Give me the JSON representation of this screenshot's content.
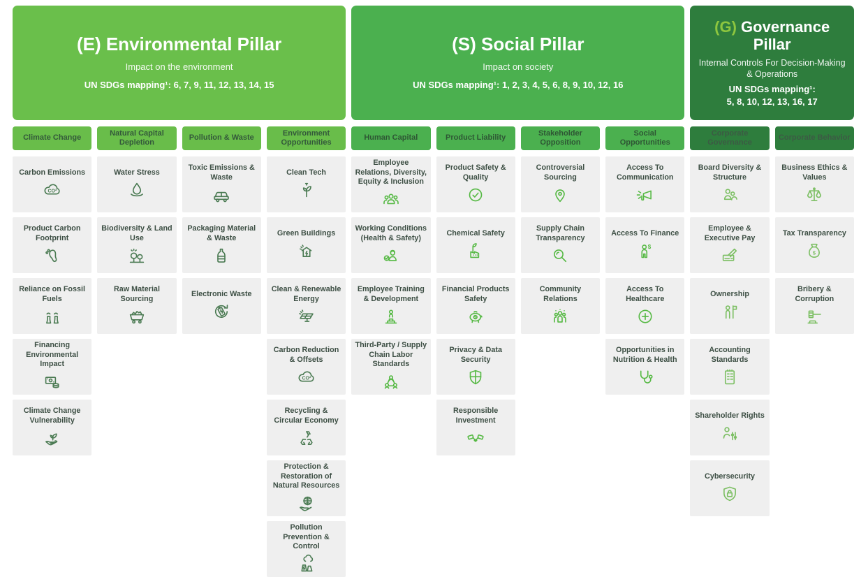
{
  "colors": {
    "environmental_green": "#6abf4b",
    "social_green": "#4bb04f",
    "governance_green": "#2e7d3d",
    "governance_code_accent": "#8dc63f",
    "card_background": "#efefef",
    "card_text": "#3d4f44",
    "env_icon": "#4a7a52",
    "soc_icon": "#56b944",
    "gov_icon": "#7cbf63"
  },
  "pillars": [
    {
      "code": "(E)",
      "title": "Environmental Pillar",
      "subtitle": "Impact on the environment",
      "sdg_label": "UN SDGs mapping¹:",
      "sdg_numbers": "6, 7, 9, 11, 12, 13, 14, 15"
    },
    {
      "code": "(S)",
      "title": "Social Pillar",
      "subtitle": "Impact on society",
      "sdg_label": "UN SDGs mapping¹:",
      "sdg_numbers": "1, 2, 3, 4, 5, 6, 8, 9, 10, 12, 16"
    },
    {
      "code": "(G)",
      "title": "Governance Pillar",
      "subtitle": "Internal Controls For Decision-Making & Operations",
      "sdg_label": "UN SDGs mapping¹:",
      "sdg_numbers": "5, 8, 10, 12, 13, 16, 17"
    }
  ],
  "columns": [
    {
      "pillar": "env",
      "header": "Climate Change",
      "cards": [
        {
          "label": "Carbon Emissions",
          "icon": "co2-cloud-icon"
        },
        {
          "label": "Product Carbon Footprint",
          "icon": "footprint-icon"
        },
        {
          "label": "Reliance on Fossil Fuels",
          "icon": "cooling-towers-icon"
        },
        {
          "label": "Financing Environmental Impact",
          "icon": "banknote-coins-icon"
        },
        {
          "label": "Climate Change Vulnerability",
          "icon": "hand-seedling-icon"
        }
      ]
    },
    {
      "pillar": "env",
      "header": "Natural Capital Depletion",
      "cards": [
        {
          "label": "Water Stress",
          "icon": "water-drop-icon"
        },
        {
          "label": "Biodiversity & Land Use",
          "icon": "trees-icon"
        },
        {
          "label": "Raw Material Sourcing",
          "icon": "mine-cart-icon"
        }
      ]
    },
    {
      "pillar": "env",
      "header": "Pollution & Waste",
      "cards": [
        {
          "label": "Toxic Emissions & Waste",
          "icon": "car-emissions-icon"
        },
        {
          "label": "Packaging Material & Waste",
          "icon": "bottle-icon"
        },
        {
          "label": "Electronic Waste",
          "icon": "battery-recycle-icon"
        }
      ]
    },
    {
      "pillar": "env",
      "header": "Environment Opportunities",
      "cards": [
        {
          "label": "Clean Tech",
          "icon": "plug-plant-icon"
        },
        {
          "label": "Green Buildings",
          "icon": "green-building-icon"
        },
        {
          "label": "Clean & Renewable Energy",
          "icon": "solar-panel-icon"
        },
        {
          "label": "Carbon Reduction & Offsets",
          "icon": "co2-cloud-icon"
        },
        {
          "label": "Recycling & Circular Economy",
          "icon": "recycle-icon"
        },
        {
          "label": "Protection & Restoration of Natural Resources",
          "icon": "hand-globe-icon"
        },
        {
          "label": "Pollution Prevention & Control",
          "icon": "factory-cloud-icon"
        }
      ]
    },
    {
      "pillar": "soc",
      "header": "Human Capital",
      "cards": [
        {
          "label": "Employee Relations, Diversity, Equity & Inclusion",
          "icon": "people-group-icon"
        },
        {
          "label": "Working Conditions (Health & Safety)",
          "icon": "worker-check-icon"
        },
        {
          "label": "Employee Training & Development",
          "icon": "training-icon"
        },
        {
          "label": "Third-Party / Supply Chain Labor Standards",
          "icon": "people-network-icon"
        }
      ]
    },
    {
      "pillar": "soc",
      "header": "Product Liability",
      "cards": [
        {
          "label": "Product Safety & Quality",
          "icon": "check-circle-icon"
        },
        {
          "label": "Chemical Safety",
          "icon": "chemical-plant-icon"
        },
        {
          "label": "Financial Products Safety",
          "icon": "piggy-bank-icon"
        },
        {
          "label": "Privacy & Data Security",
          "icon": "shield-icon"
        },
        {
          "label": "Responsible Investment",
          "icon": "handshake-icon"
        }
      ]
    },
    {
      "pillar": "soc",
      "header": "Stakeholder Opposition",
      "cards": [
        {
          "label": "Controversial Sourcing",
          "icon": "map-pin-icon"
        },
        {
          "label": "Supply Chain Transparency",
          "icon": "magnifier-icon"
        },
        {
          "label": "Community Relations",
          "icon": "community-icon"
        }
      ]
    },
    {
      "pillar": "soc",
      "header": "Social Opportunities",
      "cards": [
        {
          "label": "Access To Communication",
          "icon": "megaphone-icon"
        },
        {
          "label": "Access To Finance",
          "icon": "person-dollar-icon"
        },
        {
          "label": "Access To Healthcare",
          "icon": "medical-cross-icon"
        },
        {
          "label": "Opportunities in Nutrition & Health",
          "icon": "stethoscope-icon"
        }
      ]
    },
    {
      "pillar": "gov",
      "header": "Corporate Governance",
      "cards": [
        {
          "label": "Board Diversity & Structure",
          "icon": "two-people-icon"
        },
        {
          "label": "Employee & Executive Pay",
          "icon": "pay-cheque-icon"
        },
        {
          "label": "Ownership",
          "icon": "person-flag-icon"
        },
        {
          "label": "Accounting Standards",
          "icon": "ledger-icon"
        },
        {
          "label": "Shareholder Rights",
          "icon": "person-sliders-icon"
        },
        {
          "label": "Cybersecurity",
          "icon": "shield-lock-icon"
        }
      ]
    },
    {
      "pillar": "gov",
      "header": "Corporate Behavior",
      "cards": [
        {
          "label": "Business Ethics & Values",
          "icon": "scales-icon"
        },
        {
          "label": "Tax Transparency",
          "icon": "money-bag-icon"
        },
        {
          "label": "Bribery & Corruption",
          "icon": "gavel-icon"
        }
      ]
    }
  ]
}
